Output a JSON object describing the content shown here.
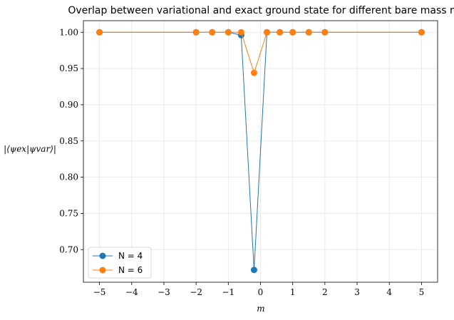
{
  "chart_data": {
    "type": "line",
    "title": "Overlap between variational and exact ground state for different bare mass m",
    "xlabel": "m",
    "ylabel": "|⟨ψex|ψvar⟩|",
    "xlim": [
      -5.5,
      5.5
    ],
    "ylim": [
      0.655,
      1.016
    ],
    "x_ticks": [
      -5,
      -4,
      -3,
      -2,
      -1,
      0,
      1,
      2,
      3,
      4,
      5
    ],
    "x_tick_labels": [
      "−5",
      "−4",
      "−3",
      "−2",
      "−1",
      "0",
      "1",
      "2",
      "3",
      "4",
      "5"
    ],
    "y_ticks": [
      0.7,
      0.75,
      0.8,
      0.85,
      0.9,
      0.95,
      1.0
    ],
    "y_tick_labels": [
      "0.70",
      "0.75",
      "0.80",
      "0.85",
      "0.90",
      "0.95",
      "1.00"
    ],
    "grid": true,
    "legend_position": "bottom-left",
    "series": [
      {
        "name": "N = 4",
        "color": "#1f77b4",
        "x": [
          -5,
          -2,
          -1.5,
          -1,
          -0.6,
          -0.2,
          0.2,
          0.6,
          1,
          1.5,
          2,
          5
        ],
        "y": [
          1.0,
          1.0,
          1.0,
          1.0,
          0.996,
          0.672,
          1.0,
          1.0,
          1.0,
          1.0,
          1.0,
          1.0
        ]
      },
      {
        "name": "N = 6",
        "color": "#ff7f0e",
        "x": [
          -5,
          -2,
          -1.5,
          -1,
          -0.6,
          -0.2,
          0.2,
          0.6,
          1,
          1.5,
          2,
          5
        ],
        "y": [
          1.0,
          1.0,
          1.0,
          1.0,
          1.0,
          0.944,
          1.0,
          1.0,
          1.0,
          1.0,
          1.0,
          1.0
        ]
      }
    ]
  }
}
